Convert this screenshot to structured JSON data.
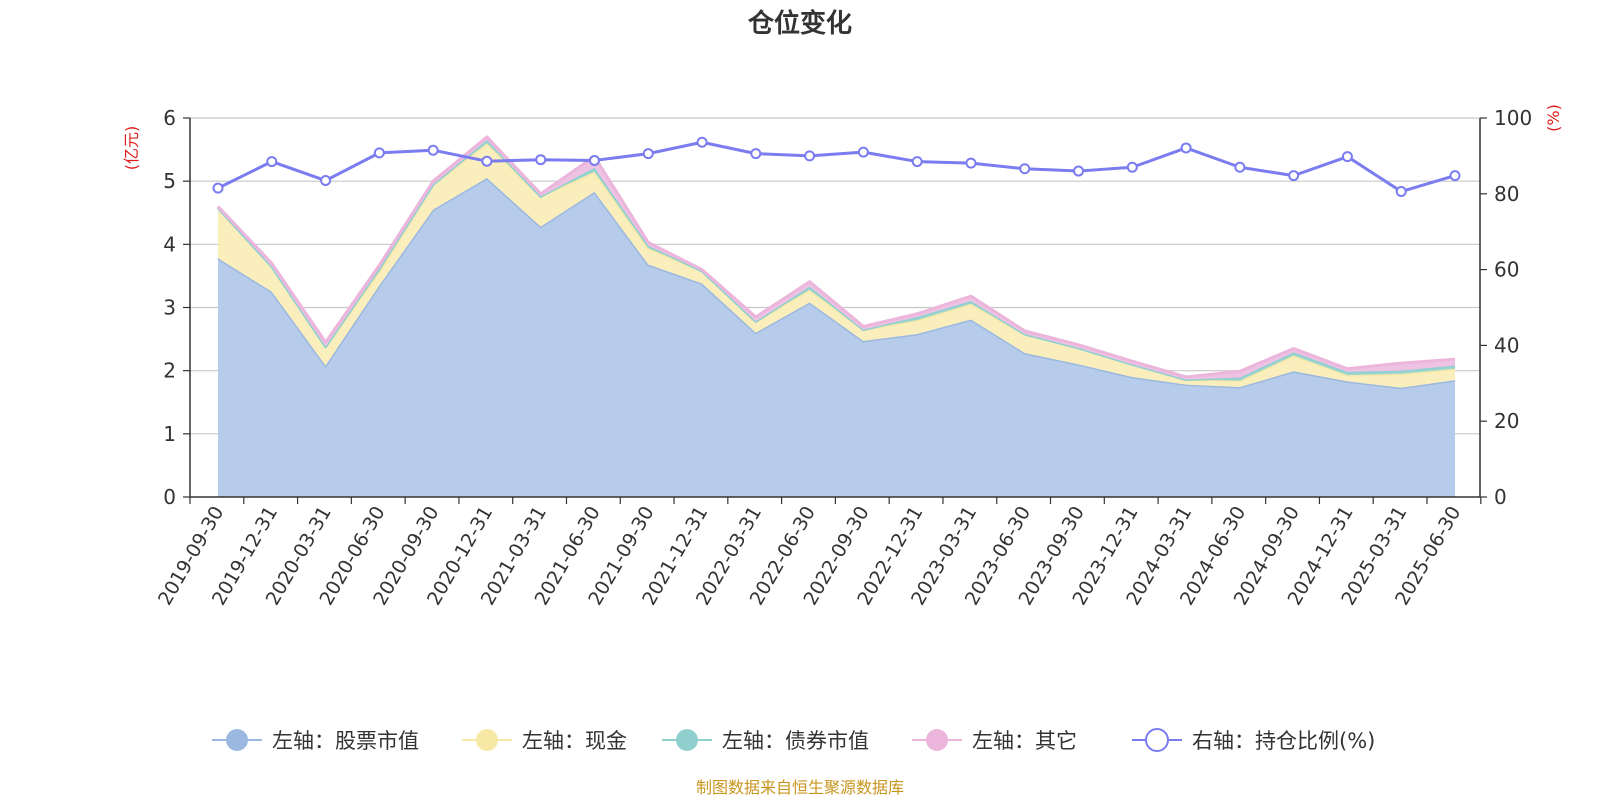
{
  "chart_data": {
    "type": "area",
    "title": "仓位变化",
    "categories": [
      "2019-09-30",
      "2019-12-31",
      "2020-03-31",
      "2020-06-30",
      "2020-09-30",
      "2020-12-31",
      "2021-03-31",
      "2021-06-30",
      "2021-09-30",
      "2021-12-31",
      "2022-03-31",
      "2022-06-30",
      "2022-09-30",
      "2022-12-31",
      "2023-03-31",
      "2023-06-30",
      "2023-09-30",
      "2023-12-31",
      "2024-03-31",
      "2024-06-30",
      "2024-09-30",
      "2024-12-31",
      "2025-03-31",
      "2025-06-30"
    ],
    "left_axis": {
      "unit": "(亿元)",
      "ylim": [
        0,
        6
      ],
      "ticks": [
        0,
        1,
        2,
        3,
        4,
        5,
        6
      ]
    },
    "right_axis": {
      "unit": "(%)",
      "ylim": [
        0,
        100
      ],
      "ticks": [
        0,
        20,
        40,
        60,
        80,
        100
      ]
    },
    "stacked": true,
    "grid": true,
    "legend_position": "bottom",
    "series": [
      {
        "name": "左轴：股票市值",
        "axis": "left",
        "kind": "area",
        "color": "#9bb8e0",
        "fill": "#b7cceb",
        "values": [
          3.78,
          3.25,
          2.08,
          3.35,
          4.55,
          5.05,
          4.28,
          4.83,
          3.68,
          3.38,
          2.6,
          3.08,
          2.47,
          2.58,
          2.81,
          2.28,
          2.1,
          1.9,
          1.78,
          1.74,
          1.99,
          1.83,
          1.73,
          1.85
        ]
      },
      {
        "name": "左轴：现金",
        "axis": "left",
        "kind": "area",
        "color": "#f7e8a6",
        "fill": "#faeebd",
        "values": [
          0.8,
          0.4,
          0.3,
          0.22,
          0.4,
          0.55,
          0.48,
          0.32,
          0.26,
          0.2,
          0.18,
          0.2,
          0.18,
          0.22,
          0.25,
          0.3,
          0.26,
          0.2,
          0.08,
          0.1,
          0.25,
          0.1,
          0.22,
          0.18
        ]
      },
      {
        "name": "左轴：债券市值",
        "axis": "left",
        "kind": "area",
        "color": "#8fd0cf",
        "fill": "#9ad5d4",
        "values": [
          0.0,
          0.0,
          0.0,
          0.05,
          0.0,
          0.05,
          0.0,
          0.06,
          0.04,
          0.0,
          0.0,
          0.05,
          0.0,
          0.05,
          0.04,
          0.0,
          0.0,
          0.0,
          0.0,
          0.05,
          0.05,
          0.05,
          0.05,
          0.05
        ]
      },
      {
        "name": "左轴：其它",
        "axis": "left",
        "kind": "area",
        "color": "#ecb5dc",
        "fill": "#eec2e2",
        "values": [
          0.02,
          0.05,
          0.07,
          0.05,
          0.05,
          0.05,
          0.04,
          0.18,
          0.05,
          0.02,
          0.07,
          0.08,
          0.05,
          0.05,
          0.08,
          0.05,
          0.05,
          0.05,
          0.04,
          0.1,
          0.06,
          0.05,
          0.12,
          0.1
        ]
      },
      {
        "name": "右轴：持仓比例(%)",
        "axis": "right",
        "kind": "line",
        "color": "#7a7cf0",
        "values": [
          81.5,
          88.5,
          83.5,
          90.8,
          91.5,
          88.6,
          89.0,
          88.8,
          90.6,
          93.6,
          90.6,
          90.0,
          91.0,
          88.5,
          88.1,
          86.6,
          86.0,
          87.0,
          92.1,
          87.0,
          84.8,
          89.8,
          80.6,
          84.8
        ]
      }
    ]
  },
  "source_note": "制图数据来自恒生聚源数据库"
}
